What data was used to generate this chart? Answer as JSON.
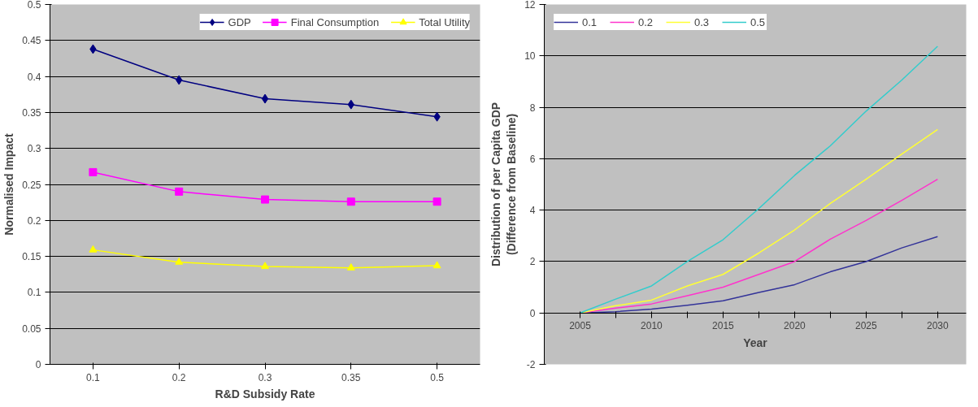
{
  "chart_data": [
    {
      "type": "line",
      "xlabel": "R&D Subsidy Rate",
      "ylabel": "Normalised Impact",
      "categories": [
        "0.1",
        "0.2",
        "0.3",
        "0.35",
        "0.5"
      ],
      "ylim": [
        0,
        0.5
      ],
      "yticks": [
        0,
        0.05,
        0.1,
        0.15,
        0.2,
        0.25,
        0.3,
        0.35,
        0.4,
        0.45,
        0.5
      ],
      "grid": "y",
      "legend": "top right",
      "series": [
        {
          "name": "GDP",
          "color": "#000080",
          "marker": "diamond",
          "values": [
            0.438,
            0.395,
            0.369,
            0.361,
            0.344
          ]
        },
        {
          "name": "Final Consumption",
          "color": "#ff00ff",
          "marker": "square",
          "values": [
            0.267,
            0.24,
            0.229,
            0.226,
            0.226
          ]
        },
        {
          "name": "Total Utility",
          "color": "#ffff00",
          "marker": "triangle",
          "values": [
            0.159,
            0.142,
            0.136,
            0.134,
            0.137
          ]
        }
      ]
    },
    {
      "type": "line",
      "xlabel": "Year",
      "ylabel": "Distribution of per Capita GDP\n(Difference from Baseline)",
      "x": [
        2005,
        2007.5,
        2010,
        2012.5,
        2015,
        2017.5,
        2020,
        2022.5,
        2025,
        2027.5,
        2030
      ],
      "xlim": [
        2002.5,
        2032
      ],
      "xticks": [
        2005,
        {
          "value": 2007.5,
          "label": null
        },
        2010,
        {
          "value": 2012.5,
          "label": null
        },
        2015,
        {
          "value": 2017.5,
          "label": null
        },
        2020,
        {
          "value": 2022.5,
          "label": null
        },
        2025,
        {
          "value": 2027.5,
          "label": null
        },
        2030
      ],
      "ylim": [
        -2,
        12
      ],
      "yticks": [
        -2,
        0,
        2,
        4,
        6,
        8,
        10,
        12
      ],
      "grid": "y",
      "legend": "top left",
      "marker": "none",
      "series": [
        {
          "name": "0.1",
          "color": "#333399",
          "values": [
            0,
            0.05,
            0.15,
            0.3,
            0.47,
            0.8,
            1.1,
            1.6,
            2.0,
            2.53,
            2.97
          ]
        },
        {
          "name": "0.2",
          "color": "#ff33cc",
          "values": [
            0,
            0.19,
            0.35,
            0.67,
            1.0,
            1.5,
            2.0,
            2.87,
            3.6,
            4.38,
            5.2
          ]
        },
        {
          "name": "0.3",
          "color": "#ffff33",
          "values": [
            0,
            0.28,
            0.5,
            1.05,
            1.5,
            2.33,
            3.23,
            4.26,
            5.2,
            6.18,
            7.14
          ]
        },
        {
          "name": "0.5",
          "color": "#33cccc",
          "values": [
            0,
            0.54,
            1.05,
            2.0,
            2.85,
            4.06,
            5.35,
            6.5,
            7.85,
            9.06,
            10.37
          ]
        }
      ]
    }
  ]
}
